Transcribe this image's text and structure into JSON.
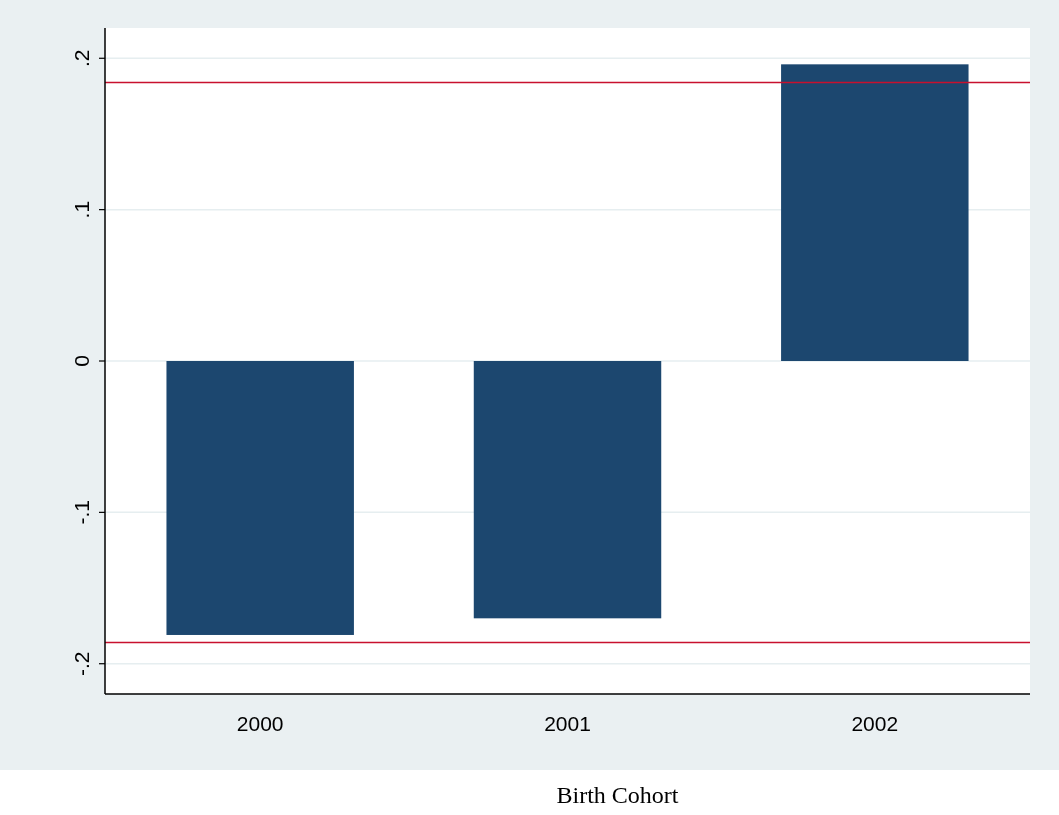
{
  "chart_data": {
    "type": "bar",
    "xlabel": "Birth Cohort",
    "categories": [
      "2000",
      "2001",
      "2002"
    ],
    "values": [
      -0.181,
      -0.17,
      0.196
    ],
    "color": "#1c476f",
    "ylim": [
      -0.22,
      0.22
    ],
    "yticks": [
      {
        "value": -0.2,
        "label": "-.2"
      },
      {
        "value": -0.1,
        "label": "-.1"
      },
      0,
      {
        "value": 0.1,
        "label": ".1"
      },
      {
        "value": 0.2,
        "label": ".2"
      }
    ],
    "grid": "y",
    "ref_lines": [
      {
        "axis": "y",
        "value": 0.184,
        "color": "#c8102e"
      },
      {
        "axis": "y",
        "value": -0.186,
        "color": "#c8102e"
      }
    ]
  }
}
